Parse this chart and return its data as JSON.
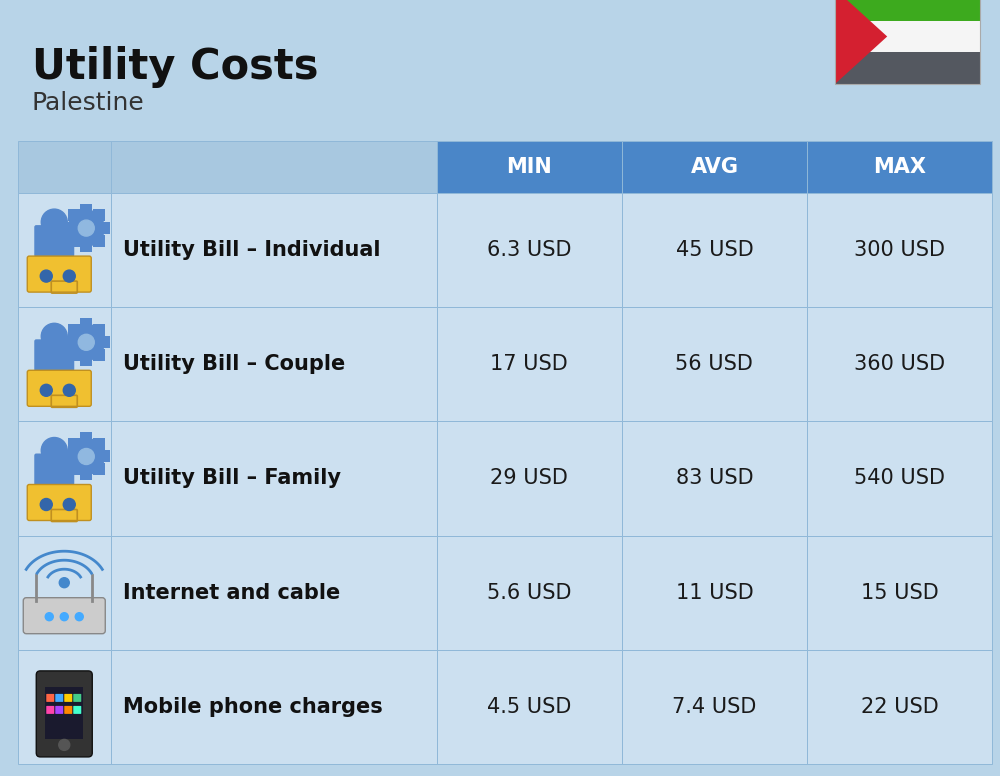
{
  "title": "Utility Costs",
  "subtitle": "Palestine",
  "background_color": "#b8d4e8",
  "header_bg_color": "#4a86c8",
  "header_text_color": "#ffffff",
  "row_bg_light": "#cce0f0",
  "row_bg_dark": "#b8d0e4",
  "table_border_color": "#90b8d8",
  "col_headers": [
    "MIN",
    "AVG",
    "MAX"
  ],
  "rows": [
    {
      "label": "Utility Bill – Individual",
      "min": "6.3 USD",
      "avg": "45 USD",
      "max": "300 USD",
      "icon": "utility"
    },
    {
      "label": "Utility Bill – Couple",
      "min": "17 USD",
      "avg": "56 USD",
      "max": "360 USD",
      "icon": "utility"
    },
    {
      "label": "Utility Bill – Family",
      "min": "29 USD",
      "avg": "83 USD",
      "max": "540 USD",
      "icon": "utility"
    },
    {
      "label": "Internet and cable",
      "min": "5.6 USD",
      "avg": "11 USD",
      "max": "15 USD",
      "icon": "internet"
    },
    {
      "label": "Mobile phone charges",
      "min": "4.5 USD",
      "avg": "7.4 USD",
      "max": "22 USD",
      "icon": "phone"
    }
  ],
  "flag": {
    "black": "#545860",
    "white": "#f5f5f5",
    "green": "#3daa1e",
    "red": "#d42030"
  },
  "title_fontsize": 30,
  "subtitle_fontsize": 18,
  "header_fontsize": 15,
  "cell_fontsize": 15,
  "label_fontsize": 15
}
